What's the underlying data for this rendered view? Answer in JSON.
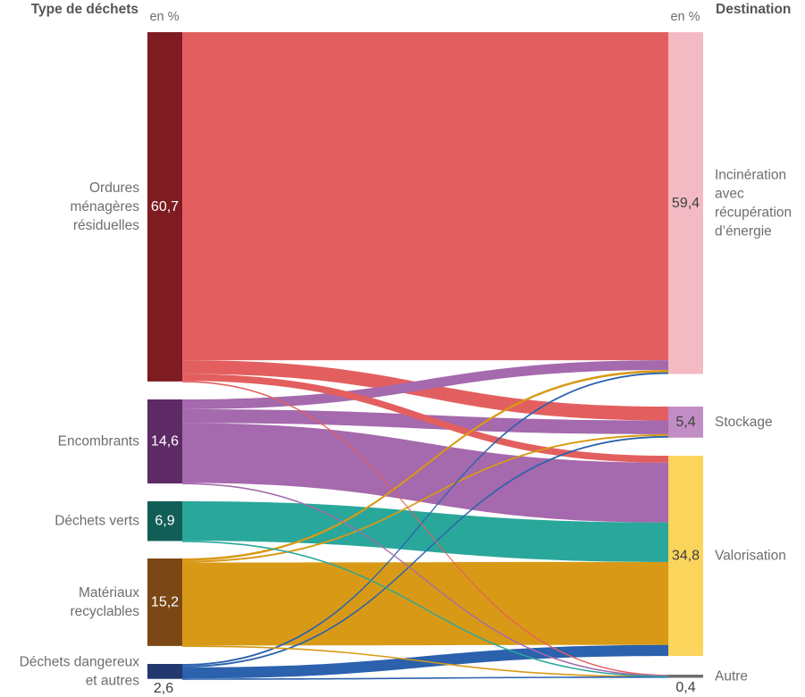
{
  "header": {
    "left_title": "Type de déchets",
    "right_title": "Destination",
    "unit_left": "en %",
    "unit_right": "en %"
  },
  "chart_data": {
    "type": "sankey",
    "unit": "%",
    "sources": [
      {
        "id": "ordures-menageres",
        "label_lines": [
          "Ordures",
          "ménagères",
          "résiduelles"
        ],
        "value": 60.7,
        "value_label": "60,7",
        "node_color": "#7e1c21",
        "flow_color": "#e35f5f",
        "value_outside": false
      },
      {
        "id": "encombrants",
        "label_lines": [
          "Encombrants"
        ],
        "value": 14.6,
        "value_label": "14,6",
        "node_color": "#5e2a66",
        "flow_color": "#a569ad",
        "value_outside": false
      },
      {
        "id": "dechets-verts",
        "label_lines": [
          "Déchets verts"
        ],
        "value": 6.9,
        "value_label": "6,9",
        "node_color": "#115e57",
        "flow_color": "#29a79b",
        "value_outside": false
      },
      {
        "id": "materiaux-recyclables",
        "label_lines": [
          "Matériaux",
          "recyclables"
        ],
        "value": 15.2,
        "value_label": "15,2",
        "node_color": "#7b4815",
        "flow_color": "#d89a16",
        "value_outside": false
      },
      {
        "id": "dechets-dangereux",
        "label_lines": [
          "Déchets dangereux",
          "et autres"
        ],
        "value": 2.6,
        "value_label": "2,6",
        "node_color": "#22386f",
        "flow_color": "#2b61ad",
        "value_outside": true
      }
    ],
    "targets": [
      {
        "id": "incineration",
        "label_lines": [
          "Incinération",
          "avec",
          "récupération",
          "d’énergie"
        ],
        "value": 59.4,
        "value_label": "59,4",
        "node_color": "#f3bac4",
        "value_outside": false
      },
      {
        "id": "stockage",
        "label_lines": [
          "Stockage"
        ],
        "value": 5.4,
        "value_label": "5,4",
        "node_color": "#c18dc5",
        "value_outside": false
      },
      {
        "id": "valorisation",
        "label_lines": [
          "Valorisation"
        ],
        "value": 34.8,
        "value_label": "34,8",
        "node_color": "#fbd45c",
        "value_outside": false
      },
      {
        "id": "autre",
        "label_lines": [
          "Autre"
        ],
        "value": 0.4,
        "value_label": "0,4",
        "node_color": "#6e6e6e",
        "value_outside": true
      }
    ],
    "links": [
      {
        "source": 0,
        "target": 0,
        "value": 57.0
      },
      {
        "source": 0,
        "target": 1,
        "value": 2.4
      },
      {
        "source": 0,
        "target": 2,
        "value": 1.2
      },
      {
        "source": 0,
        "target": 3,
        "value": 0.1
      },
      {
        "source": 1,
        "target": 0,
        "value": 1.7
      },
      {
        "source": 1,
        "target": 1,
        "value": 2.4
      },
      {
        "source": 1,
        "target": 2,
        "value": 10.4
      },
      {
        "source": 1,
        "target": 3,
        "value": 0.1
      },
      {
        "source": 2,
        "target": 2,
        "value": 6.86
      },
      {
        "source": 2,
        "target": 3,
        "value": 0.04
      },
      {
        "source": 3,
        "target": 0,
        "value": 0.4
      },
      {
        "source": 3,
        "target": 1,
        "value": 0.3
      },
      {
        "source": 3,
        "target": 2,
        "value": 14.42
      },
      {
        "source": 3,
        "target": 3,
        "value": 0.08
      },
      {
        "source": 4,
        "target": 0,
        "value": 0.3
      },
      {
        "source": 4,
        "target": 1,
        "value": 0.3
      },
      {
        "source": 4,
        "target": 2,
        "value": 1.92
      },
      {
        "source": 4,
        "target": 3,
        "value": 0.08
      }
    ],
    "colors": {
      "label_text": "#6e6e6e",
      "value_dark_text": "#3f3f3f",
      "value_light_text": "#ffffff",
      "header_text": "#555555"
    }
  }
}
